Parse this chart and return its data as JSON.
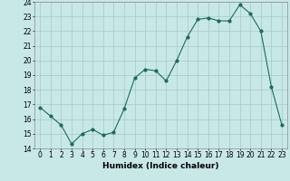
{
  "x": [
    0,
    1,
    2,
    3,
    4,
    5,
    6,
    7,
    8,
    9,
    10,
    11,
    12,
    13,
    14,
    15,
    16,
    17,
    18,
    19,
    20,
    21,
    22,
    23
  ],
  "y": [
    16.8,
    16.2,
    15.6,
    14.3,
    15.0,
    15.3,
    14.9,
    15.1,
    16.7,
    18.8,
    19.4,
    19.3,
    18.6,
    20.0,
    21.6,
    22.8,
    22.9,
    22.7,
    22.7,
    23.8,
    23.2,
    22.0,
    18.2,
    15.6
  ],
  "xlabel": "Humidex (Indice chaleur)",
  "xlim": [
    -0.5,
    23.5
  ],
  "ylim": [
    14,
    24
  ],
  "yticks": [
    14,
    15,
    16,
    17,
    18,
    19,
    20,
    21,
    22,
    23,
    24
  ],
  "xticks": [
    0,
    1,
    2,
    3,
    4,
    5,
    6,
    7,
    8,
    9,
    10,
    11,
    12,
    13,
    14,
    15,
    16,
    17,
    18,
    19,
    20,
    21,
    22,
    23
  ],
  "line_color": "#1a6b5a",
  "marker": "o",
  "marker_size": 2,
  "bg_color": "#c8e8e8",
  "grid_color": "#a8c8c8",
  "label_fontsize": 6.5,
  "tick_fontsize": 5.5
}
